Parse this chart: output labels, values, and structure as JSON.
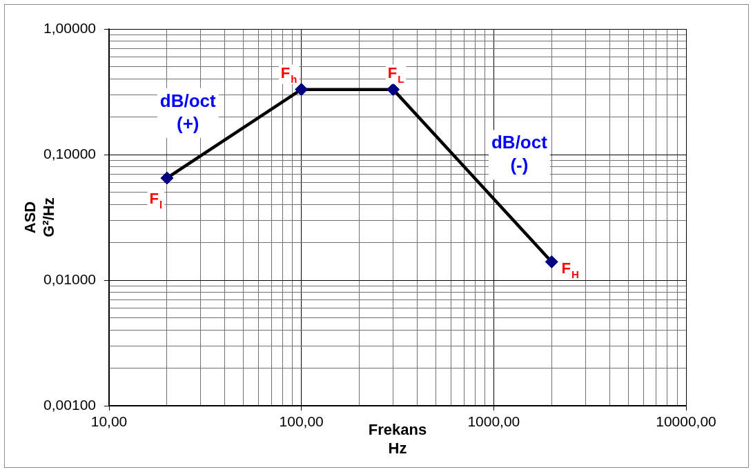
{
  "chart_data": {
    "type": "line",
    "xlabel": "Frekans\nHz",
    "ylabel": "ASD\nG²/Hz",
    "log": "xy",
    "grid": true,
    "x": [
      20,
      100,
      300,
      2000
    ],
    "series": [
      {
        "type": "line",
        "color": "#000000",
        "marker": "none",
        "values": [
          0.065,
          0.33,
          0.33,
          0.014
        ]
      },
      {
        "type": "scatter",
        "color": "#000080",
        "marker": "diamond",
        "values": [
          0.065,
          0.33,
          0.33,
          0.014
        ]
      }
    ],
    "xlim": [
      10,
      10000
    ],
    "ylim": [
      0.001,
      1
    ],
    "xticks": [
      {
        "value": 10,
        "label": "10,00"
      },
      {
        "value": 20,
        "label": null
      },
      {
        "value": 30,
        "label": null
      },
      {
        "value": 40,
        "label": null
      },
      {
        "value": 50,
        "label": null
      },
      {
        "value": 60,
        "label": null
      },
      {
        "value": 70,
        "label": null
      },
      {
        "value": 80,
        "label": null
      },
      {
        "value": 90,
        "label": null
      },
      {
        "value": 100,
        "label": "100,00"
      },
      {
        "value": 200,
        "label": null
      },
      {
        "value": 300,
        "label": null
      },
      {
        "value": 400,
        "label": null
      },
      {
        "value": 500,
        "label": null
      },
      {
        "value": 600,
        "label": null
      },
      {
        "value": 700,
        "label": null
      },
      {
        "value": 800,
        "label": null
      },
      {
        "value": 900,
        "label": null
      },
      {
        "value": 1000,
        "label": "1000,00"
      },
      {
        "value": 2000,
        "label": null
      },
      {
        "value": 3000,
        "label": null
      },
      {
        "value": 4000,
        "label": null
      },
      {
        "value": 5000,
        "label": null
      },
      {
        "value": 6000,
        "label": null
      },
      {
        "value": 7000,
        "label": null
      },
      {
        "value": 8000,
        "label": null
      },
      {
        "value": 9000,
        "label": null
      },
      {
        "value": 10000,
        "label": "10000,00"
      }
    ],
    "yticks": [
      {
        "value": 0.001,
        "label": "0,00100"
      },
      {
        "value": 0.002,
        "label": null
      },
      {
        "value": 0.003,
        "label": null
      },
      {
        "value": 0.004,
        "label": null
      },
      {
        "value": 0.005,
        "label": null
      },
      {
        "value": 0.006,
        "label": null
      },
      {
        "value": 0.007,
        "label": null
      },
      {
        "value": 0.008,
        "label": null
      },
      {
        "value": 0.009,
        "label": null
      },
      {
        "value": 0.01,
        "label": "0,01000"
      },
      {
        "value": 0.02,
        "label": null
      },
      {
        "value": 0.03,
        "label": null
      },
      {
        "value": 0.04,
        "label": null
      },
      {
        "value": 0.05,
        "label": null
      },
      {
        "value": 0.06,
        "label": null
      },
      {
        "value": 0.07,
        "label": null
      },
      {
        "value": 0.08,
        "label": null
      },
      {
        "value": 0.09,
        "label": null
      },
      {
        "value": 0.1,
        "label": "0,10000"
      },
      {
        "value": 0.2,
        "label": null
      },
      {
        "value": 0.3,
        "label": null
      },
      {
        "value": 0.4,
        "label": null
      },
      {
        "value": 0.5,
        "label": null
      },
      {
        "value": 0.6,
        "label": null
      },
      {
        "value": 0.7,
        "label": null
      },
      {
        "value": 0.8,
        "label": null
      },
      {
        "value": 0.9,
        "label": null
      },
      {
        "value": 1,
        "label": "1,00000"
      }
    ],
    "annotations": [
      {
        "text": "F$_{l}$",
        "x": 20,
        "y": 0.065
      },
      {
        "text": "F$_{h}$",
        "x": 100,
        "y": 0.33
      },
      {
        "text": "F$_{L}$",
        "x": 300,
        "y": 0.33
      },
      {
        "text": "F$_{H}$",
        "x": 2000,
        "y": 0.014
      },
      "dB/oct\n(+)",
      "dB/oct\n(-)"
    ]
  }
}
